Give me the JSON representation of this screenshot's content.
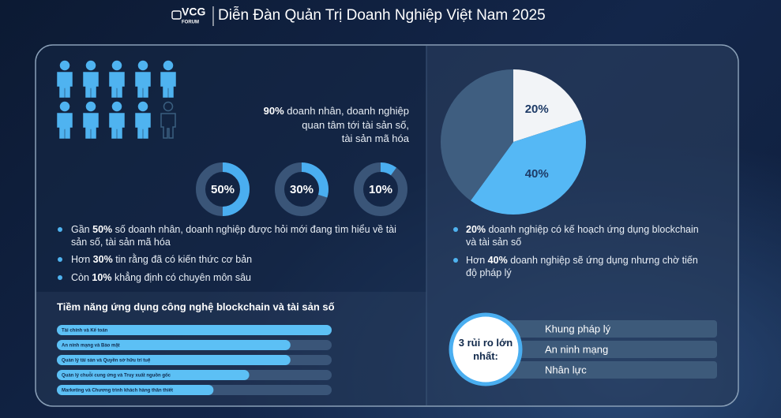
{
  "header": {
    "logo": "VCG",
    "logo_sub": "FORUM",
    "title": "Diễn Đàn Quản Trị Doanh Nghiệp Việt Nam 2025"
  },
  "chart_data": [
    {
      "type": "pictogram",
      "value": 90,
      "value_label": "90%",
      "color": "#4fb3f0",
      "text_lines": [
        "doanh nhân, doanh nghiệp",
        "quan tâm tới tài sản số,",
        "tài sản mã hóa"
      ]
    },
    {
      "type": "donut",
      "values": [
        50,
        30,
        10
      ],
      "value_labels": [
        "50%",
        "30%",
        "10%"
      ],
      "ylim": [
        0,
        100
      ],
      "color": "#4aaef0"
    },
    {
      "type": "pie",
      "values": [
        20,
        40,
        40
      ],
      "value_labels": [
        "20%",
        "40%",
        null
      ],
      "colors": [
        "#f2f4f7",
        "#55b8f5",
        "#3f5e80"
      ]
    },
    {
      "type": "bar",
      "title": "Tiềm năng ứng dụng công nghệ blockchain và tài sản số",
      "categories": [
        "Tài chính và Kế toán",
        "An ninh mạng và Bảo mật",
        "Quản lý tài sản và Quyền sở hữu trí tuệ",
        "Quản lý chuỗi cung ứng và Truy xuất nguồn gốc",
        "Marketing và Chương trình khách hàng thân thiết"
      ],
      "values": [
        100,
        85,
        85,
        70,
        57
      ],
      "xlim": [
        0,
        100
      ],
      "color": "#5cc0f5"
    }
  ],
  "left_bullets": [
    {
      "prefix": "Gần",
      "bold": "50%",
      "text": "số doanh nhân, doanh nghiệp được hỏi mới đang tìm hiểu về tài sản số, tài sản mã hóa"
    },
    {
      "prefix": "Hơn",
      "bold": "30%",
      "text": "tin rằng đã có kiến thức cơ bản"
    },
    {
      "prefix": "Còn",
      "bold": "10%",
      "text": "khẳng định có chuyên môn sâu"
    }
  ],
  "right_bullets": [
    {
      "bold": "20%",
      "text": "doanh nghiệp có kế hoạch ứng dụng blockchain và tài sản số"
    },
    {
      "prefix": "Hơn",
      "bold": "40%",
      "text": "doanh nghiệp sẽ ứng dụng nhưng chờ tiến độ pháp lý"
    }
  ],
  "risks": {
    "title": "3 rủi ro lớn nhất:",
    "items": [
      "Khung pháp lý",
      "An ninh mạng",
      "Nhân lực"
    ]
  }
}
